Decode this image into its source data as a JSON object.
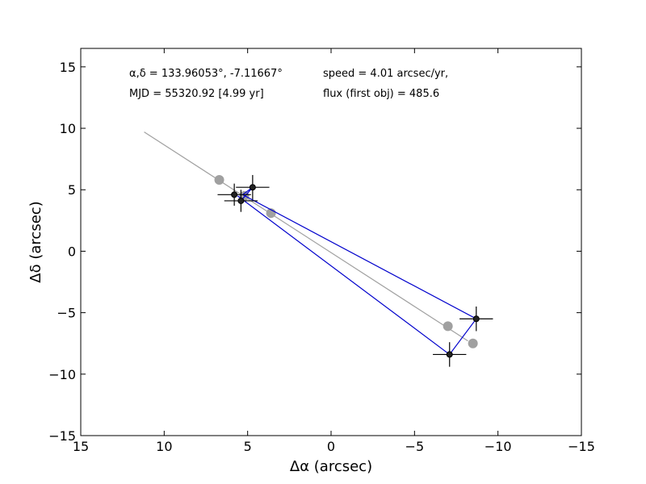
{
  "chart_data": {
    "type": "scatter",
    "xlabel": "Δα (arcsec)",
    "ylabel": "Δδ (arcsec)",
    "xlim": [
      15,
      -15
    ],
    "ylim": [
      -15,
      16.5
    ],
    "x_ticks": [
      15,
      10,
      5,
      0,
      -5,
      -10,
      -15
    ],
    "x_tick_labels": [
      "15",
      "10",
      "5",
      "0",
      "−5",
      "−10",
      "−15"
    ],
    "y_ticks": [
      -15,
      -10,
      -5,
      0,
      5,
      10,
      15
    ],
    "y_tick_labels": [
      "−15",
      "−10",
      "−5",
      "0",
      "5",
      "10",
      "15"
    ],
    "grid": false,
    "annotations": {
      "coords": "α,δ = 133.96053°, -7.11667°",
      "mjd": "MJD = 55320.92 [4.99 yr]",
      "speed": "speed = 4.01 arcsec/yr,",
      "flux": "flux (first obj) = 485.6"
    },
    "model_line": {
      "color": "#a0a0a0",
      "x": [
        11.2,
        -8.2
      ],
      "y": [
        9.7,
        -7.3
      ]
    },
    "model_points": {
      "color": "#a0a0a0",
      "x": [
        6.7,
        5.2,
        3.6,
        -7.0,
        -8.5
      ],
      "y": [
        5.8,
        4.5,
        3.1,
        -6.1,
        -7.5
      ]
    },
    "observed_path": {
      "color": "#0000cc",
      "x": [
        5.6,
        -7.1,
        -8.7,
        5.3,
        4.7,
        5.4
      ],
      "y": [
        4.5,
        -8.4,
        -5.5,
        4.6,
        5.2,
        4.1
      ]
    },
    "observations": [
      {
        "x": 5.8,
        "y": 4.6,
        "xerr": 1.0,
        "yerr": 0.9
      },
      {
        "x": 4.7,
        "y": 5.2,
        "xerr": 1.0,
        "yerr": 1.0
      },
      {
        "x": 5.4,
        "y": 4.1,
        "xerr": 1.0,
        "yerr": 0.9
      },
      {
        "x": -7.1,
        "y": -8.4,
        "xerr": 1.0,
        "yerr": 1.0
      },
      {
        "x": -8.7,
        "y": -5.5,
        "xerr": 1.0,
        "yerr": 1.0
      }
    ],
    "observation_color": "#222222"
  }
}
